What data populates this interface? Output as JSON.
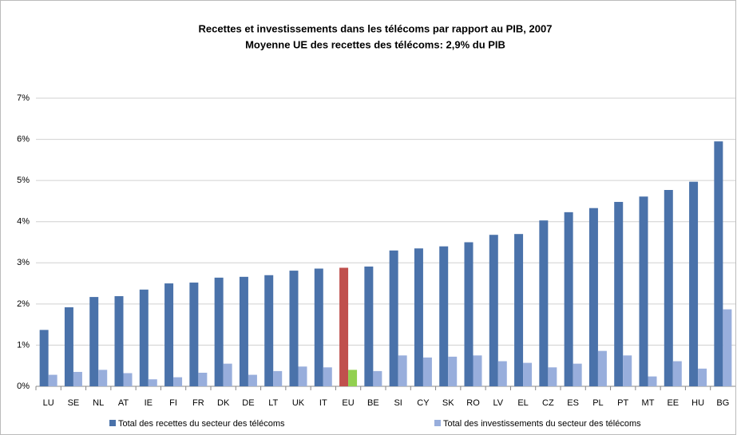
{
  "chart_data": {
    "type": "bar",
    "title": "Recettes et investissements dans les télécoms par rapport au PIB, 2007",
    "subtitle": "Moyenne UE des recettes des télécoms: 2,9% du PIB",
    "categories": [
      "LU",
      "SE",
      "NL",
      "AT",
      "IE",
      "FI",
      "FR",
      "DK",
      "DE",
      "LT",
      "UK",
      "IT",
      "EU",
      "BE",
      "SI",
      "CY",
      "SK",
      "RO",
      "LV",
      "EL",
      "CZ",
      "ES",
      "PL",
      "PT",
      "MT",
      "EE",
      "HU",
      "BG"
    ],
    "series": [
      {
        "name": "Total des recettes du secteur des télécoms",
        "color": "#4a72aa",
        "highlight_color": "#c0504d",
        "values": [
          1.37,
          1.92,
          2.17,
          2.19,
          2.35,
          2.5,
          2.52,
          2.64,
          2.66,
          2.7,
          2.81,
          2.86,
          2.88,
          2.91,
          3.3,
          3.35,
          3.4,
          3.5,
          3.68,
          3.7,
          4.03,
          4.23,
          4.33,
          4.48,
          4.61,
          4.77,
          4.97,
          5.95
        ]
      },
      {
        "name": "Total des investissements du secteur des télécoms",
        "color": "#98aedc",
        "highlight_color": "#92d050",
        "values": [
          0.28,
          0.35,
          0.4,
          0.32,
          0.17,
          0.22,
          0.33,
          0.55,
          0.28,
          0.37,
          0.48,
          0.46,
          0.4,
          0.37,
          0.75,
          0.7,
          0.72,
          0.75,
          0.61,
          0.57,
          0.46,
          0.55,
          0.86,
          0.75,
          0.24,
          0.61,
          0.43,
          1.87
        ]
      }
    ],
    "highlight_index": 12,
    "ylim": [
      0,
      7
    ],
    "yticks": [
      {
        "value": 0,
        "label": "0%"
      },
      {
        "value": 1,
        "label": "1%"
      },
      {
        "value": 2,
        "label": "2%"
      },
      {
        "value": 3,
        "label": "3%"
      },
      {
        "value": 4,
        "label": "4%"
      },
      {
        "value": 5,
        "label": "5%"
      },
      {
        "value": 6,
        "label": "6%"
      },
      {
        "value": 7,
        "label": "7%"
      }
    ],
    "grid": true,
    "legend": "bottom"
  }
}
